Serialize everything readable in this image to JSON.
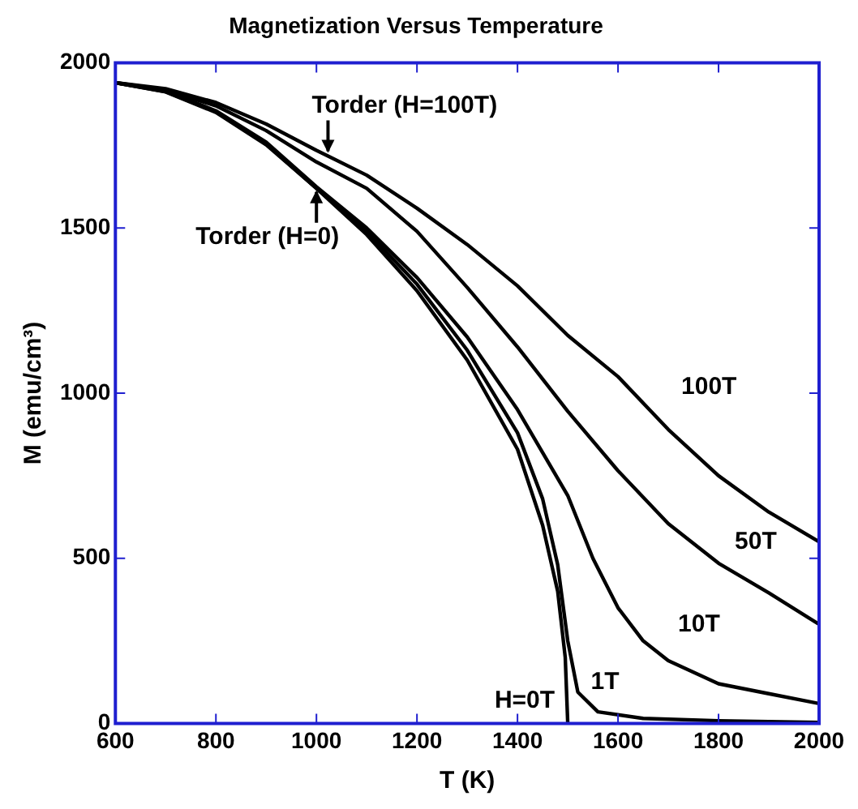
{
  "chart_data": {
    "type": "line",
    "title": "Magnetization Versus Temperature",
    "xlabel": "T (K)",
    "ylabel": "M (emu/cm³)",
    "xlim": [
      600,
      2000
    ],
    "xticks": [
      600,
      800,
      1000,
      1200,
      1400,
      1600,
      1800,
      2000
    ],
    "ylim": [
      0,
      2000
    ],
    "yticks": [
      0,
      500,
      1000,
      1500,
      2000
    ],
    "grid": false,
    "legend": false,
    "marker": "none",
    "line_style": "solid",
    "series": [
      {
        "name": "100T",
        "color": "#000000",
        "x": [
          600,
          700,
          800,
          900,
          1000,
          1023,
          1100,
          1200,
          1300,
          1400,
          1500,
          1600,
          1700,
          1800,
          1900,
          2000
        ],
        "values": [
          1940,
          1922,
          1880,
          1815,
          1735,
          1718,
          1660,
          1560,
          1450,
          1325,
          1175,
          1050,
          890,
          750,
          640,
          550
        ]
      },
      {
        "name": "50T",
        "color": "#000000",
        "x": [
          600,
          700,
          800,
          900,
          1000,
          1100,
          1200,
          1300,
          1400,
          1500,
          1600,
          1700,
          1800,
          1900,
          2000
        ],
        "values": [
          1940,
          1918,
          1870,
          1795,
          1700,
          1620,
          1490,
          1320,
          1140,
          945,
          765,
          605,
          485,
          395,
          300
        ]
      },
      {
        "name": "10T",
        "color": "#000000",
        "x": [
          600,
          700,
          800,
          900,
          1000,
          1100,
          1200,
          1300,
          1400,
          1500,
          1550,
          1600,
          1650,
          1700,
          1800,
          1900,
          2000
        ],
        "values": [
          1940,
          1915,
          1855,
          1760,
          1625,
          1500,
          1350,
          1170,
          950,
          690,
          500,
          350,
          250,
          190,
          120,
          90,
          60
        ]
      },
      {
        "name": "1T",
        "color": "#000000",
        "x": [
          600,
          700,
          800,
          900,
          1000,
          1100,
          1200,
          1300,
          1400,
          1450,
          1480,
          1500,
          1520,
          1560,
          1650,
          1800,
          2000
        ],
        "values": [
          1940,
          1913,
          1852,
          1755,
          1620,
          1490,
          1330,
          1130,
          880,
          680,
          480,
          250,
          95,
          35,
          15,
          8,
          3
        ]
      },
      {
        "name": "H=0T",
        "color": "#000000",
        "x": [
          600,
          700,
          800,
          900,
          1000,
          1100,
          1200,
          1300,
          1400,
          1450,
          1480,
          1495,
          1500
        ],
        "values": [
          1940,
          1912,
          1850,
          1752,
          1620,
          1480,
          1310,
          1100,
          830,
          600,
          400,
          200,
          0
        ]
      }
    ],
    "annotations": [
      {
        "text": "Torder (H=100T)",
        "x": 1023,
        "y": 1718
      },
      {
        "text": "Torder (H=0)",
        "x": 1000,
        "y": 1624
      }
    ]
  }
}
